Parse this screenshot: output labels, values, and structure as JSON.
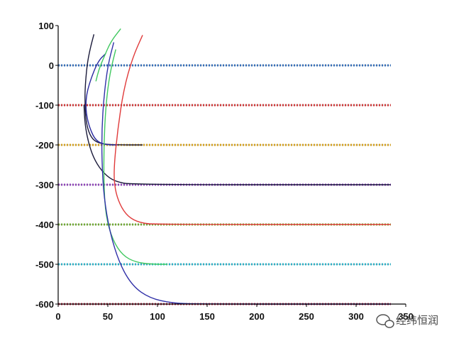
{
  "chart_data": {
    "type": "line",
    "title": "",
    "xlabel": "",
    "ylabel": "",
    "xlim": [
      0,
      350
    ],
    "ylim": [
      -600,
      100
    ],
    "x_ticks": [
      0,
      50,
      100,
      150,
      200,
      250,
      300,
      350
    ],
    "x_tick_labels": [
      "0",
      "50",
      "100",
      "150",
      "200",
      "250",
      "300",
      "350"
    ],
    "y_ticks": [
      100,
      0,
      -100,
      -200,
      -300,
      -400,
      -500,
      -600
    ],
    "y_tick_labels": [
      "100",
      "0",
      "-100",
      "-200",
      "-300",
      "-400",
      "-500",
      "-600"
    ],
    "grid": false,
    "legend": "none",
    "dotted_levels": [
      {
        "y": 0,
        "x_max": 335,
        "color": "#3a78c8"
      },
      {
        "y": -100,
        "x_max": 335,
        "color": "#e03a3a"
      },
      {
        "y": -200,
        "x_max": 335,
        "color": "#e8b020"
      },
      {
        "y": -300,
        "x_max": 335,
        "color": "#9a4ac8"
      },
      {
        "y": -400,
        "x_max": 335,
        "color": "#7ab83a"
      },
      {
        "y": -500,
        "x_max": 335,
        "color": "#30c0d8"
      },
      {
        "y": -600,
        "x_max": 335,
        "color": "#c83050"
      }
    ],
    "series": [
      {
        "color": "#1a1a3a",
        "points": [
          [
            36,
            78
          ],
          [
            32,
            40
          ],
          [
            29,
            0
          ],
          [
            27,
            -60
          ],
          [
            27,
            -100
          ],
          [
            28,
            -140
          ],
          [
            31,
            -170
          ],
          [
            36,
            -190
          ],
          [
            45,
            -198
          ],
          [
            60,
            -200
          ],
          [
            85,
            -200
          ]
        ]
      },
      {
        "color": "#1a1a3a",
        "points": [
          [
            26,
            -100
          ],
          [
            27,
            -150
          ],
          [
            31,
            -200
          ],
          [
            37,
            -240
          ],
          [
            46,
            -272
          ],
          [
            57,
            -292
          ],
          [
            75,
            -300
          ],
          [
            335,
            -300
          ]
        ]
      },
      {
        "color": "#2a2aa0",
        "points": [
          [
            48,
            30
          ],
          [
            40,
            10
          ],
          [
            32,
            -40
          ],
          [
            28,
            -80
          ],
          [
            28,
            -120
          ],
          [
            32,
            -160
          ],
          [
            38,
            -190
          ],
          [
            48,
            -200
          ],
          [
            60,
            -200
          ]
        ]
      },
      {
        "color": "#e03a3a",
        "points": [
          [
            85,
            76
          ],
          [
            75,
            20
          ],
          [
            66,
            -60
          ],
          [
            60,
            -160
          ],
          [
            56,
            -260
          ],
          [
            57,
            -310
          ],
          [
            62,
            -350
          ],
          [
            70,
            -380
          ],
          [
            82,
            -396
          ],
          [
            100,
            -400
          ],
          [
            335,
            -400
          ]
        ]
      },
      {
        "color": "#40c860",
        "points": [
          [
            63,
            92
          ],
          [
            53,
            60
          ],
          [
            46,
            20
          ],
          [
            41,
            -10
          ],
          [
            38,
            -40
          ]
        ]
      },
      {
        "color": "#40c860",
        "points": [
          [
            58,
            40
          ],
          [
            52,
            -20
          ],
          [
            48,
            -100
          ],
          [
            46,
            -200
          ],
          [
            46,
            -300
          ],
          [
            48,
            -380
          ],
          [
            55,
            -440
          ],
          [
            65,
            -478
          ],
          [
            78,
            -495
          ],
          [
            95,
            -500
          ],
          [
            110,
            -500
          ]
        ]
      },
      {
        "color": "#3030a8",
        "points": [
          [
            56,
            58
          ],
          [
            50,
            0
          ],
          [
            46,
            -80
          ],
          [
            44,
            -160
          ],
          [
            44,
            -240
          ],
          [
            46,
            -330
          ],
          [
            52,
            -420
          ],
          [
            62,
            -500
          ],
          [
            75,
            -555
          ],
          [
            92,
            -585
          ],
          [
            115,
            -598
          ],
          [
            145,
            -600
          ],
          [
            335,
            -600
          ]
        ]
      }
    ]
  },
  "watermark": {
    "text": "经纬恒润",
    "icon": "chat-bubble-icon"
  }
}
